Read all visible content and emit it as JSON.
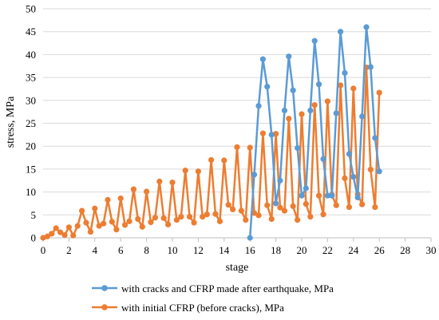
{
  "chart_data": {
    "type": "line",
    "xlabel": "stage",
    "ylabel": "stress, MPa",
    "xlim": [
      0,
      30
    ],
    "ylim": [
      0,
      50
    ],
    "xticks": [
      0,
      2,
      4,
      6,
      8,
      10,
      12,
      14,
      16,
      18,
      20,
      22,
      24,
      26,
      28,
      30
    ],
    "yticks": [
      0,
      5,
      10,
      15,
      20,
      25,
      30,
      35,
      40,
      45,
      50
    ],
    "grid": "horizontal",
    "legend_position": "bottom",
    "series": [
      {
        "name": "with cracks and CFRP made after earthquake, MPa",
        "color": "#5B9BD5",
        "x": [
          16,
          16.33,
          16.67,
          17,
          17.33,
          17.67,
          18,
          18.33,
          18.67,
          19,
          19.33,
          19.67,
          20,
          20.33,
          20.67,
          21,
          21.33,
          21.67,
          22,
          22.33,
          22.67,
          23,
          23.33,
          23.67,
          24,
          24.33,
          24.67,
          25,
          25.33,
          25.67,
          26
        ],
        "y": [
          0,
          13.8,
          28.8,
          39,
          33,
          22.5,
          7.5,
          12.5,
          27.8,
          39.6,
          32.2,
          19.6,
          9.2,
          10.8,
          27.8,
          43,
          33.5,
          17.2,
          9.2,
          9.2,
          27.2,
          45,
          36,
          18.3,
          13.3,
          8.8,
          26.5,
          46,
          37.3,
          21.8,
          14.5
        ]
      },
      {
        "name": "with initial CFRP (before cracks), MPa",
        "color": "#ED7D31",
        "x": [
          0,
          0.33,
          0.67,
          1,
          1.33,
          1.67,
          2,
          2.33,
          2.67,
          3,
          3.33,
          3.67,
          4,
          4.33,
          4.67,
          5,
          5.33,
          5.67,
          6,
          6.33,
          6.67,
          7,
          7.33,
          7.67,
          8,
          8.33,
          8.67,
          9,
          9.33,
          9.67,
          10,
          10.33,
          10.67,
          11,
          11.33,
          11.67,
          12,
          12.33,
          12.67,
          13,
          13.33,
          13.67,
          14,
          14.33,
          14.67,
          15,
          15.33,
          15.67,
          16,
          16.33,
          16.67,
          17,
          17.33,
          17.67,
          18,
          18.33,
          18.67,
          19,
          19.33,
          19.67,
          20,
          20.33,
          20.67,
          21,
          21.33,
          21.67,
          22,
          22.33,
          22.67,
          23,
          23.33,
          23.67,
          24,
          24.33,
          24.67,
          25,
          25.33,
          25.67,
          26
        ],
        "y": [
          0,
          0.3,
          0.9,
          2.1,
          1.2,
          0.6,
          2.3,
          0.5,
          2.6,
          5.9,
          3.3,
          1.3,
          6.4,
          2.6,
          3.1,
          8.3,
          3.5,
          1.8,
          8.6,
          2.8,
          3.6,
          10.6,
          4.1,
          2.4,
          10.1,
          3.4,
          4.4,
          12.3,
          4.3,
          2.9,
          12.1,
          3.9,
          4.6,
          14.7,
          4.6,
          3.3,
          14.5,
          4.6,
          5.1,
          17,
          5.2,
          3.6,
          16.9,
          7.2,
          6.2,
          19.8,
          5.9,
          3.9,
          19.7,
          5.4,
          4.9,
          22.8,
          7.1,
          4.1,
          22.7,
          6.6,
          5.9,
          26,
          6.9,
          3.9,
          27,
          7.4,
          4.6,
          29,
          9.2,
          5.1,
          29.8,
          9.4,
          7.1,
          33.3,
          13,
          6.7,
          32.6,
          9.5,
          7.3,
          37.2,
          14.9,
          6.7,
          31.7
        ]
      }
    ]
  }
}
